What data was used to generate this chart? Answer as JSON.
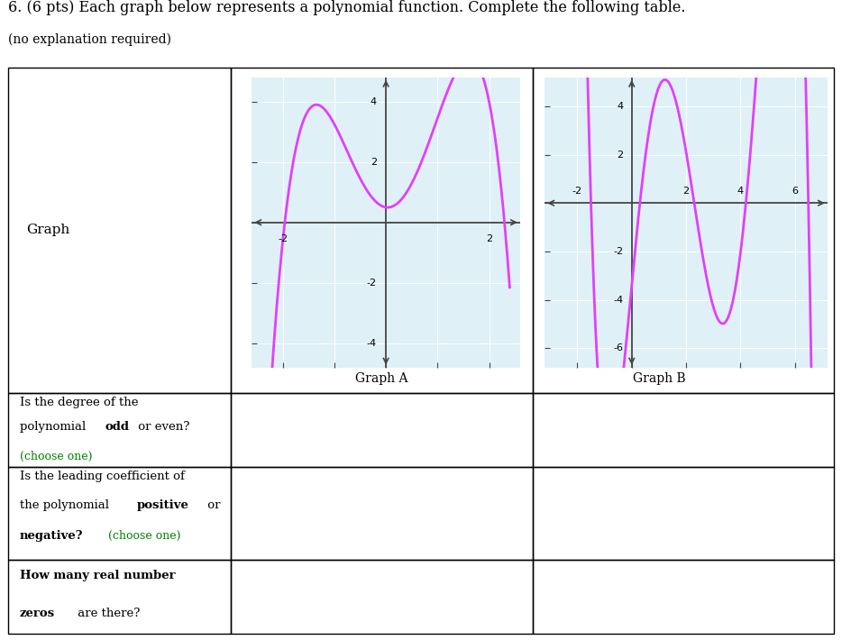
{
  "title": "6. (6 pts) Each graph below represents a polynomial function. Complete the following table.",
  "subtitle": "(no explanation required)",
  "graph_a_label": "Graph A",
  "graph_b_label": "Graph B",
  "curve_color": "#e040fb",
  "bg_color": "#dff0f7",
  "axis_color": "#444444",
  "graph_a_xlim": [
    -2.6,
    2.6
  ],
  "graph_a_ylim": [
    -4.8,
    4.8
  ],
  "graph_a_xticks": [
    -2,
    -1,
    0,
    1,
    2
  ],
  "graph_a_yticks": [
    -4,
    -2,
    0,
    2,
    4
  ],
  "graph_a_xtick_labels": [
    "-2",
    "",
    "",
    "",
    "2"
  ],
  "graph_a_ytick_labels": [
    "-4",
    "-2",
    "",
    "2",
    "4"
  ],
  "graph_b_xlim": [
    -3.2,
    7.2
  ],
  "graph_b_ylim": [
    -6.8,
    5.2
  ],
  "graph_b_xticks": [
    -2,
    0,
    2,
    4,
    6
  ],
  "graph_b_yticks": [
    -6,
    -4,
    -2,
    0,
    2,
    4
  ],
  "graph_b_xtick_labels": [
    "-2",
    "",
    "2",
    "4",
    "6"
  ],
  "graph_b_ytick_labels": [
    "-6",
    "-4",
    "-2",
    "",
    "2",
    "4"
  ]
}
